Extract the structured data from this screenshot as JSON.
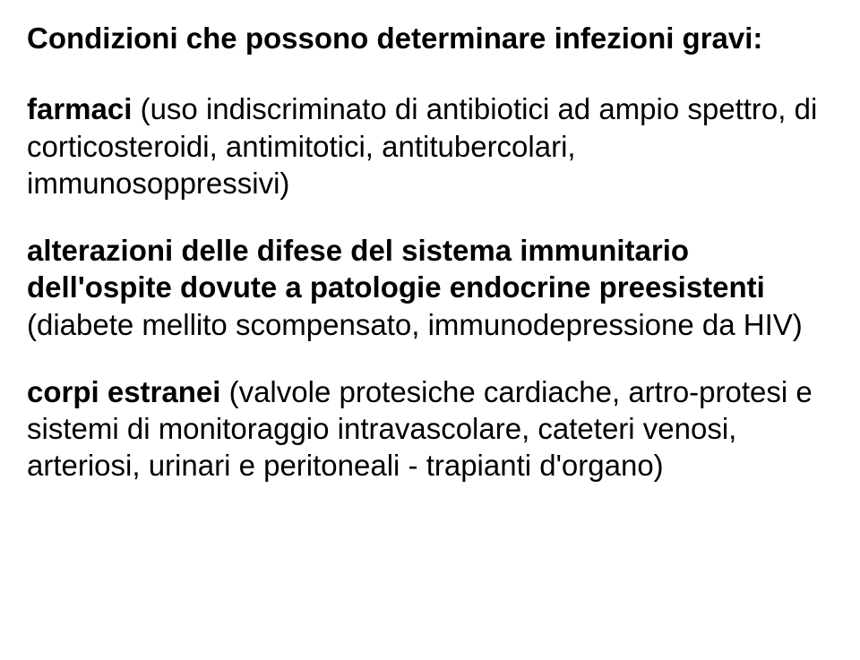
{
  "doc": {
    "heading": "Condizioni che possono determinare infezioni gravi:",
    "para1_bold": "farmaci",
    "para1_rest": " (uso indiscriminato di antibiotici ad ampio spettro, di corticosteroidi, antimitotici, antitubercolari, immunosoppressivi)",
    "para2_bold": "alterazioni delle difese del sistema immunitario dell'ospite dovute a patologie endocrine preesistenti",
    "para2_rest": " (diabete mellito scompensato, immunodepressione da HIV)",
    "para3_bold": "corpi estranei",
    "para3_rest": " (valvole protesiche cardiache, artro-protesi e sistemi di monitoraggio intravascolare, cateteri venosi, arteriosi, urinari e peritoneali - trapianti d'organo)"
  },
  "style": {
    "background_color": "#ffffff",
    "text_color": "#000000",
    "font_family": "Arial, Helvetica, sans-serif",
    "heading_fontsize": 33,
    "heading_fontweight": "bold",
    "body_fontsize": 33,
    "line_height": 1.25,
    "paragraph_spacing": 34
  }
}
